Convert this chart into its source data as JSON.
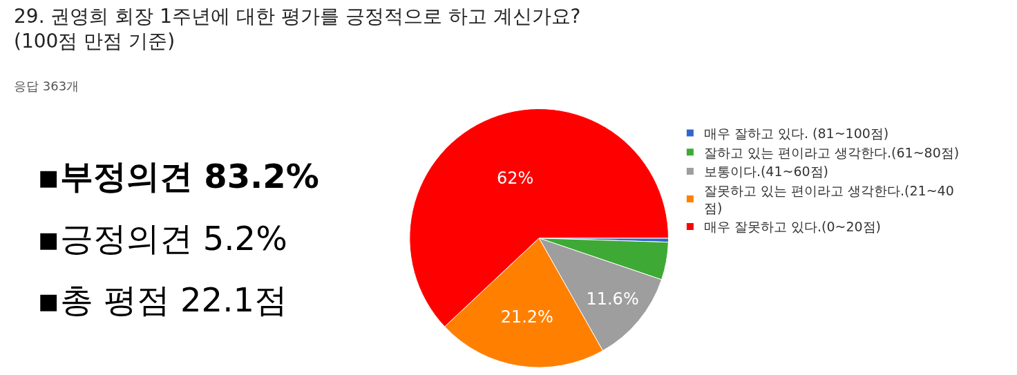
{
  "chart_data": {
    "type": "pie",
    "title": "29. 권영희 회장 1주년에 대한 평가를 긍정적으로 하고 계신가요?\n(100점 만점 기준)",
    "subtitle": "응답 363개",
    "categories": [
      "매우 잘하고 있다. (81~100점)",
      "잘하고 있는 편이라고 생각한다.(61~80점)",
      "보통이다.(41~60점)",
      "잘못하고 있는 편이라고 생각한다.(21~40\n점)",
      "매우 잘못하고 있다.(0~20점)"
    ],
    "values": [
      0.5,
      4.7,
      11.6,
      21.2,
      62
    ],
    "colors": [
      "#3366cc",
      "#3eaa35",
      "#9e9e9e",
      "#ff8000",
      "#ff0000"
    ],
    "value_labels": [
      null,
      null,
      "11.6%",
      "21.2%",
      "62%"
    ],
    "legend": "right",
    "annotations": [
      "▪부정의견 83.2%",
      "▪긍정의견 5.2%",
      "▪총 평점 22.1점"
    ]
  }
}
